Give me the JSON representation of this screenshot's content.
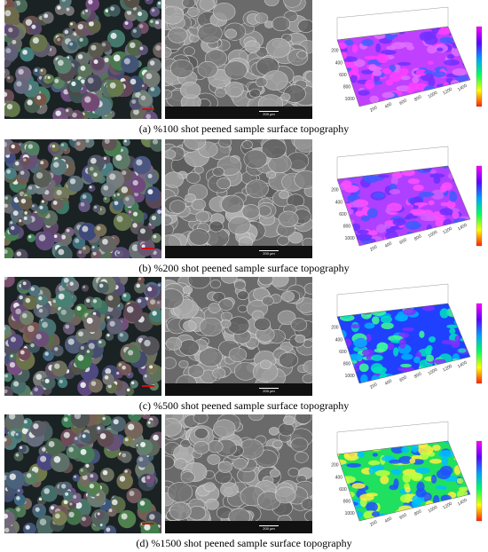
{
  "figure": {
    "panels": [
      {
        "caption": "(a) %100 shot peened sample surface topography"
      },
      {
        "caption": "(b) %200 shot peened sample surface topography"
      },
      {
        "caption": "(c) %500 shot peened sample surface topography"
      },
      {
        "caption": "(d) %1500 shot peened sample surface topography"
      }
    ],
    "sem_scale": "200 μm",
    "topography_axes": {
      "x_ticks": [
        "200",
        "400",
        "600",
        "800",
        "1000",
        "1200",
        "1400"
      ],
      "y_ticks": [
        "200",
        "400",
        "600",
        "800",
        "1000"
      ]
    }
  }
}
